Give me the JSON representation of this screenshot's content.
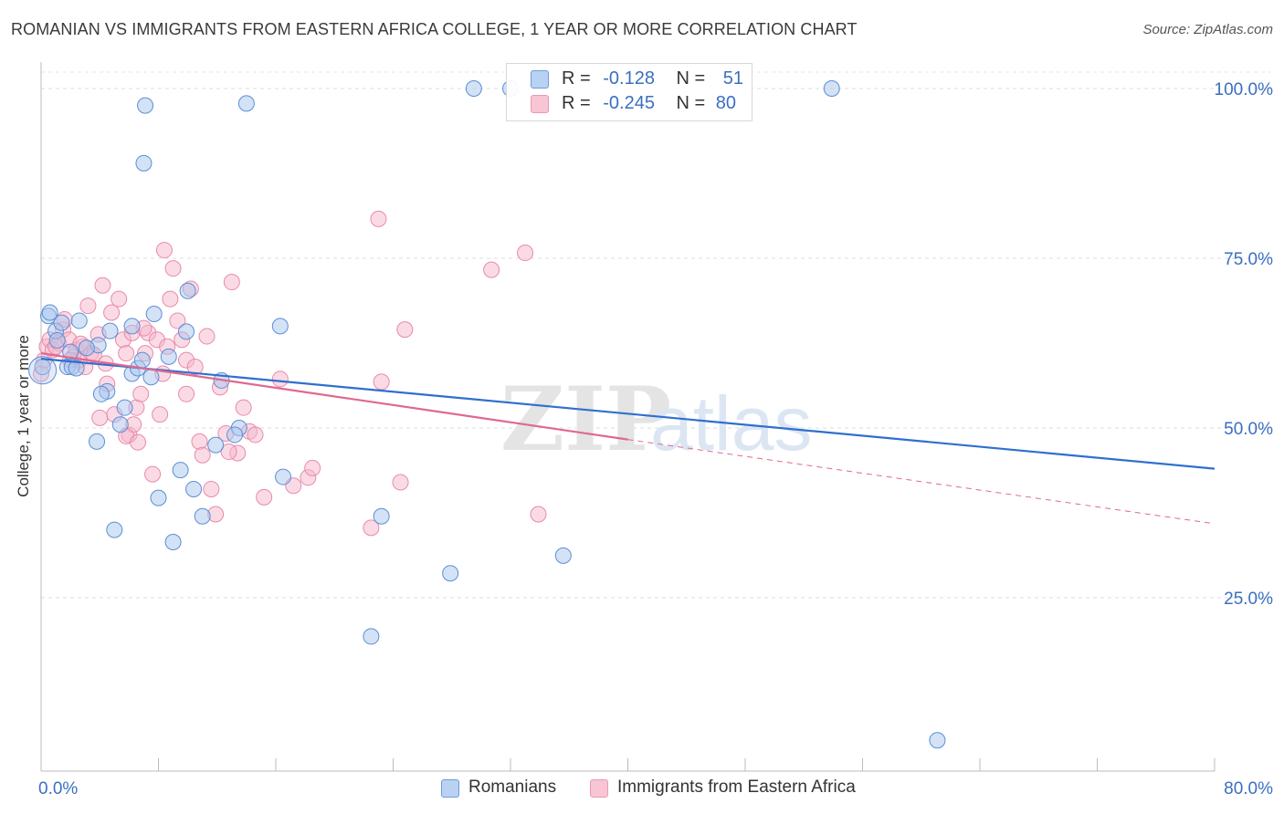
{
  "header": {
    "title": "ROMANIAN VS IMMIGRANTS FROM EASTERN AFRICA COLLEGE, 1 YEAR OR MORE CORRELATION CHART",
    "source": "Source: ZipAtlas.com"
  },
  "legend": {
    "rows": [
      {
        "r_label": "R =",
        "r_value": "-0.128",
        "n_label": "N =",
        "n_value": "51"
      },
      {
        "r_label": "R =",
        "r_value": "-0.245",
        "n_label": "N =",
        "n_value": "80"
      }
    ]
  },
  "bottom_legend": {
    "items": [
      {
        "label": "Romanians"
      },
      {
        "label": "Immigrants from Eastern Africa"
      }
    ]
  },
  "watermark": {
    "zip": "ZIP",
    "atlas": "atlas"
  },
  "chart_data": {
    "type": "scatter",
    "title": "ROMANIAN VS IMMIGRANTS FROM EASTERN AFRICA COLLEGE, 1 YEAR OR MORE CORRELATION CHART",
    "xlabel": "",
    "ylabel": "College, 1 year or more",
    "xlim": [
      0,
      80
    ],
    "ylim": [
      0,
      104
    ],
    "x_tick_labels": [
      "0.0%",
      "80.0%"
    ],
    "y_tick_labels": [
      "25.0%",
      "50.0%",
      "75.0%",
      "100.0%"
    ],
    "y_ticks": [
      25,
      50,
      75,
      100
    ],
    "grid": true,
    "legend_position": "top-center",
    "colors": {
      "romanians_fill": "#a9c6ee",
      "romanians_stroke": "#5b8fd6",
      "romanians_line": "#2f6fce",
      "eastafrica_fill": "#f6b8cc",
      "eastafrica_stroke": "#e98aab",
      "eastafrica_line": "#e0688f",
      "value_text": "#3b6fc0"
    },
    "series": [
      {
        "name": "Romanians",
        "r": -0.128,
        "n": 51,
        "trend": {
          "x0": 0,
          "y0": 60.2,
          "x1": 80,
          "y1": 44.0
        },
        "points": [
          [
            0.1,
            59.0
          ],
          [
            0.5,
            66.5
          ],
          [
            1.0,
            64.3
          ],
          [
            0.6,
            67.0
          ],
          [
            1.4,
            65.5
          ],
          [
            2.6,
            65.8
          ],
          [
            1.1,
            62.9
          ],
          [
            2.0,
            61.2
          ],
          [
            1.8,
            59.0
          ],
          [
            2.1,
            59.0
          ],
          [
            3.9,
            62.2
          ],
          [
            4.7,
            64.3
          ],
          [
            3.1,
            61.8
          ],
          [
            4.5,
            55.4
          ],
          [
            4.1,
            55.0
          ],
          [
            5.7,
            53.0
          ],
          [
            5.4,
            50.5
          ],
          [
            6.2,
            58.0
          ],
          [
            6.6,
            58.8
          ],
          [
            6.9,
            60.0
          ],
          [
            7.5,
            57.5
          ],
          [
            7.7,
            66.8
          ],
          [
            8.7,
            60.5
          ],
          [
            6.2,
            65.0
          ],
          [
            9.9,
            64.2
          ],
          [
            12.3,
            57.0
          ],
          [
            10.0,
            70.2
          ],
          [
            16.3,
            65.0
          ],
          [
            7.0,
            89.0
          ],
          [
            7.1,
            97.5
          ],
          [
            14.0,
            97.8
          ],
          [
            29.5,
            100.0
          ],
          [
            32.0,
            100.0
          ],
          [
            53.9,
            100.0
          ],
          [
            3.8,
            48.0
          ],
          [
            5.0,
            35.0
          ],
          [
            8.0,
            39.7
          ],
          [
            9.5,
            43.8
          ],
          [
            10.4,
            41.0
          ],
          [
            9.0,
            33.2
          ],
          [
            11.9,
            47.5
          ],
          [
            13.5,
            50.0
          ],
          [
            16.5,
            42.8
          ],
          [
            11.0,
            37.0
          ],
          [
            23.2,
            37.0
          ],
          [
            27.9,
            28.6
          ],
          [
            35.6,
            31.2
          ],
          [
            22.5,
            19.3
          ],
          [
            61.1,
            4.0
          ],
          [
            2.4,
            58.8
          ],
          [
            13.2,
            49.0
          ]
        ]
      },
      {
        "name": "Immigrants from Eastern Africa",
        "r": -0.245,
        "n": 80,
        "trend": {
          "x0": 0,
          "y0": 61.0,
          "x1": 40,
          "y1": 48.3,
          "dashed_to_x": 80,
          "dashed_to_y": 35.9
        },
        "points": [
          [
            0.0,
            58.0
          ],
          [
            0.2,
            60.0
          ],
          [
            0.4,
            62.0
          ],
          [
            0.6,
            63.0
          ],
          [
            0.8,
            61.5
          ],
          [
            1.2,
            62.5
          ],
          [
            1.5,
            64.5
          ],
          [
            1.6,
            66.0
          ],
          [
            1.9,
            63.0
          ],
          [
            2.2,
            60.5
          ],
          [
            2.4,
            61.5
          ],
          [
            2.6,
            60.0
          ],
          [
            2.9,
            62.0
          ],
          [
            3.2,
            68.0
          ],
          [
            3.4,
            61.0
          ],
          [
            3.6,
            60.8
          ],
          [
            3.9,
            63.8
          ],
          [
            4.2,
            71.0
          ],
          [
            4.5,
            56.5
          ],
          [
            4.8,
            67.0
          ],
          [
            5.0,
            52.0
          ],
          [
            5.3,
            69.0
          ],
          [
            5.6,
            63.0
          ],
          [
            5.8,
            61.0
          ],
          [
            6.0,
            49.0
          ],
          [
            6.3,
            50.5
          ],
          [
            6.5,
            53.0
          ],
          [
            6.8,
            55.0
          ],
          [
            7.1,
            61.0
          ],
          [
            7.3,
            64.0
          ],
          [
            7.6,
            43.2
          ],
          [
            7.9,
            63.0
          ],
          [
            8.1,
            52.0
          ],
          [
            8.4,
            76.2
          ],
          [
            8.6,
            62.0
          ],
          [
            8.8,
            69.0
          ],
          [
            9.0,
            73.5
          ],
          [
            9.3,
            65.8
          ],
          [
            9.6,
            63.0
          ],
          [
            9.9,
            60.0
          ],
          [
            10.2,
            70.5
          ],
          [
            10.5,
            59.0
          ],
          [
            10.8,
            48.0
          ],
          [
            11.0,
            46.0
          ],
          [
            11.3,
            63.5
          ],
          [
            11.6,
            41.0
          ],
          [
            11.9,
            37.3
          ],
          [
            12.2,
            56.0
          ],
          [
            12.6,
            49.2
          ],
          [
            13.0,
            71.5
          ],
          [
            13.4,
            46.3
          ],
          [
            13.8,
            53.0
          ],
          [
            14.2,
            49.5
          ],
          [
            14.6,
            49.0
          ],
          [
            15.2,
            39.8
          ],
          [
            16.3,
            57.2
          ],
          [
            17.2,
            41.5
          ],
          [
            18.2,
            42.7
          ],
          [
            18.5,
            44.1
          ],
          [
            23.0,
            80.8
          ],
          [
            22.5,
            35.3
          ],
          [
            23.2,
            56.8
          ],
          [
            24.5,
            42.0
          ],
          [
            24.8,
            64.5
          ],
          [
            30.7,
            73.3
          ],
          [
            33.0,
            75.8
          ],
          [
            33.9,
            37.3
          ],
          [
            5.8,
            48.8
          ],
          [
            6.6,
            47.9
          ],
          [
            3.0,
            59.0
          ],
          [
            2.7,
            62.4
          ],
          [
            4.4,
            59.5
          ],
          [
            1.0,
            62.0
          ],
          [
            7.0,
            64.7
          ],
          [
            8.3,
            58.0
          ],
          [
            9.9,
            55.0
          ],
          [
            4.0,
            51.5
          ],
          [
            6.2,
            64.0
          ],
          [
            12.8,
            46.5
          ],
          [
            2.0,
            60.0
          ]
        ]
      }
    ]
  }
}
